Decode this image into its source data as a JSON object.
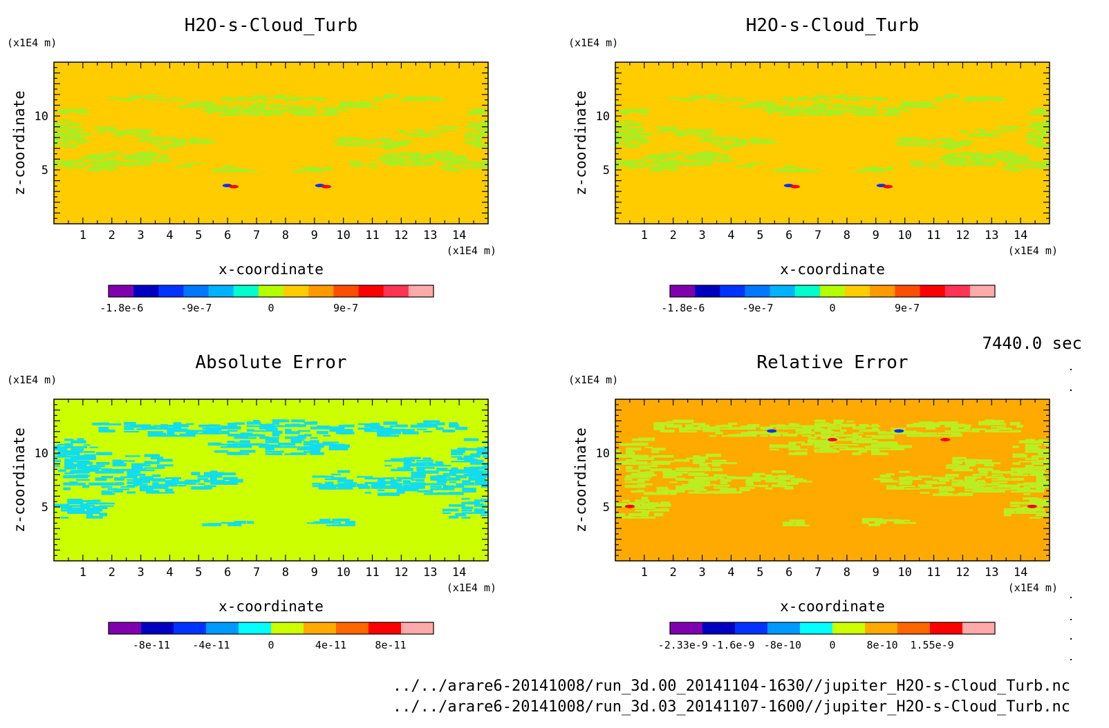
{
  "figure": {
    "time_label": "7440.0 sec",
    "file_paths": [
      "../../arare6-20141008/run_3d.00_20141104-1630//jupiter_H2O-s-Cloud_Turb.nc",
      "../../arare6-20141008/run_3d.03_20141107-1600//jupiter_H2O-s-Cloud_Turb.nc"
    ]
  },
  "chart_data": [
    {
      "type": "heatmap",
      "title": "H2O-s-Cloud_Turb",
      "xlabel": "x-coordinate",
      "ylabel": "z-coordinate",
      "x_unit": "(x1E4 m)",
      "z_unit": "(x1E4 m)",
      "xlim": [
        0,
        15
      ],
      "ylim": [
        0,
        15
      ],
      "x_ticks": [
        1,
        2,
        3,
        4,
        5,
        6,
        7,
        8,
        9,
        10,
        11,
        12,
        13,
        14
      ],
      "y_ticks": [
        5,
        10
      ],
      "background_color": "#ffcc00",
      "colorbar": {
        "colors": [
          "#8000b0",
          "#0000c0",
          "#0033ff",
          "#0077ff",
          "#00b3ff",
          "#00ffcc",
          "#b3ff00",
          "#ffcc00",
          "#ff9900",
          "#ff4d00",
          "#ff0000",
          "#ff3355",
          "#ffaaaa"
        ],
        "tick_labels": [
          "-1.8e-6",
          "-9e-7",
          "0",
          "9e-7"
        ]
      },
      "pattern": {
        "type": "cloud",
        "color": "#a8ee22",
        "spots": [
          {
            "x": 6.1,
            "z": 3.5,
            "colors": [
              "#0033ff",
              "#ff0000"
            ]
          },
          {
            "x": 9.3,
            "z": 3.5,
            "colors": [
              "#0033ff",
              "#ff0000"
            ]
          }
        ]
      }
    },
    {
      "type": "heatmap",
      "title": "H2O-s-Cloud_Turb",
      "xlabel": "x-coordinate",
      "ylabel": "z-coordinate",
      "x_unit": "(x1E4 m)",
      "z_unit": "(x1E4 m)",
      "xlim": [
        0,
        15
      ],
      "ylim": [
        0,
        15
      ],
      "x_ticks": [
        1,
        2,
        3,
        4,
        5,
        6,
        7,
        8,
        9,
        10,
        11,
        12,
        13,
        14
      ],
      "y_ticks": [
        5,
        10
      ],
      "background_color": "#ffcc00",
      "colorbar": {
        "colors": [
          "#8000b0",
          "#0000c0",
          "#0033ff",
          "#0077ff",
          "#00b3ff",
          "#00ffcc",
          "#b3ff00",
          "#ffcc00",
          "#ff9900",
          "#ff4d00",
          "#ff0000",
          "#ff3355",
          "#ffaaaa"
        ],
        "tick_labels": [
          "-1.8e-6",
          "-9e-7",
          "0",
          "9e-7"
        ]
      },
      "pattern": {
        "type": "cloud",
        "color": "#a8ee22",
        "spots": [
          {
            "x": 6.1,
            "z": 3.5,
            "colors": [
              "#0033ff",
              "#ff0000"
            ]
          },
          {
            "x": 9.3,
            "z": 3.5,
            "colors": [
              "#0033ff",
              "#ff0000"
            ]
          }
        ]
      }
    },
    {
      "type": "heatmap",
      "title": "Absolute Error",
      "xlabel": "x-coordinate",
      "ylabel": "z-coordinate",
      "x_unit": "(x1E4 m)",
      "z_unit": "(x1E4 m)",
      "xlim": [
        0,
        15
      ],
      "ylim": [
        0,
        15
      ],
      "x_ticks": [
        1,
        2,
        3,
        4,
        5,
        6,
        7,
        8,
        9,
        10,
        11,
        12,
        13,
        14
      ],
      "y_ticks": [
        5,
        10
      ],
      "background_color": "#ccff00",
      "colorbar": {
        "colors": [
          "#8000b0",
          "#0000c0",
          "#0033ff",
          "#0099ff",
          "#00ffff",
          "#ccff00",
          "#ffaa00",
          "#ff6600",
          "#ff0000",
          "#ffaaaa"
        ],
        "tick_labels": [
          "-8e-11",
          "-4e-11",
          "0",
          "4e-11",
          "8e-11"
        ]
      },
      "pattern": {
        "type": "error",
        "color": "#11ddee",
        "spots": []
      }
    },
    {
      "type": "heatmap",
      "title": "Relative Error",
      "xlabel": "x-coordinate",
      "ylabel": "z-coordinate",
      "x_unit": "(x1E4 m)",
      "z_unit": "(x1E4 m)",
      "xlim": [
        0,
        15
      ],
      "ylim": [
        0,
        15
      ],
      "x_ticks": [
        1,
        2,
        3,
        4,
        5,
        6,
        7,
        8,
        9,
        10,
        11,
        12,
        13,
        14
      ],
      "y_ticks": [
        5,
        10
      ],
      "background_color": "#ffaa00",
      "colorbar": {
        "colors": [
          "#8000b0",
          "#0000c0",
          "#0033ff",
          "#0099ff",
          "#00ffff",
          "#ccff00",
          "#ffaa00",
          "#ff6600",
          "#ff0000",
          "#ffaaaa"
        ],
        "tick_labels": [
          "-2.33e-9",
          "-1.6e-9",
          "-8e-10",
          "0",
          "8e-10",
          "1.55e-9"
        ]
      },
      "pattern": {
        "type": "error",
        "color": "#bbee22",
        "spots": [
          {
            "x": 5.4,
            "z": 12.0,
            "colors": [
              "#0033ff"
            ]
          },
          {
            "x": 9.8,
            "z": 12.0,
            "colors": [
              "#0033ff"
            ]
          },
          {
            "x": 7.5,
            "z": 11.2,
            "colors": [
              "#ff0000"
            ]
          },
          {
            "x": 11.4,
            "z": 11.2,
            "colors": [
              "#ff0000"
            ]
          },
          {
            "x": 0.5,
            "z": 5.0,
            "colors": [
              "#ff0000"
            ]
          },
          {
            "x": 14.4,
            "z": 5.0,
            "colors": [
              "#ff0000"
            ]
          }
        ]
      }
    }
  ]
}
